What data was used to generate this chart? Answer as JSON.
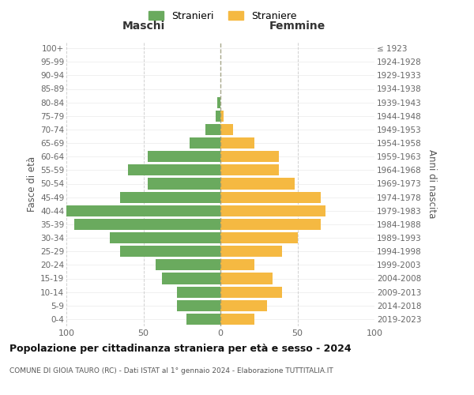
{
  "age_groups": [
    "0-4",
    "5-9",
    "10-14",
    "15-19",
    "20-24",
    "25-29",
    "30-34",
    "35-39",
    "40-44",
    "45-49",
    "50-54",
    "55-59",
    "60-64",
    "65-69",
    "70-74",
    "75-79",
    "80-84",
    "85-89",
    "90-94",
    "95-99",
    "100+"
  ],
  "birth_years": [
    "2019-2023",
    "2014-2018",
    "2009-2013",
    "2004-2008",
    "1999-2003",
    "1994-1998",
    "1989-1993",
    "1984-1988",
    "1979-1983",
    "1974-1978",
    "1969-1973",
    "1964-1968",
    "1959-1963",
    "1954-1958",
    "1949-1953",
    "1944-1948",
    "1939-1943",
    "1934-1938",
    "1929-1933",
    "1924-1928",
    "≤ 1923"
  ],
  "males": [
    22,
    28,
    28,
    38,
    42,
    65,
    72,
    95,
    100,
    65,
    47,
    60,
    47,
    20,
    10,
    3,
    2,
    0,
    0,
    0,
    0
  ],
  "females": [
    22,
    30,
    40,
    34,
    22,
    40,
    50,
    65,
    68,
    65,
    48,
    38,
    38,
    22,
    8,
    2,
    0,
    0,
    0,
    0,
    0
  ],
  "male_color": "#6aaa5e",
  "female_color": "#f5b942",
  "background_color": "#ffffff",
  "grid_color": "#cccccc",
  "title": "Popolazione per cittadinanza straniera per età e sesso - 2024",
  "subtitle": "COMUNE DI GIOIA TAURO (RC) - Dati ISTAT al 1° gennaio 2024 - Elaborazione TUTTITALIA.IT",
  "xlabel_left": "Maschi",
  "xlabel_right": "Femmine",
  "ylabel_left": "Fasce di età",
  "ylabel_right": "Anni di nascita",
  "legend_male": "Stranieri",
  "legend_female": "Straniere",
  "xlim": 100
}
